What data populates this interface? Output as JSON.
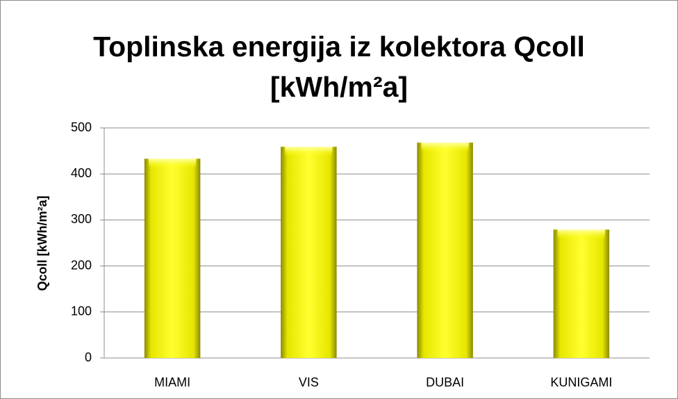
{
  "chart_data": {
    "type": "bar",
    "title": "Toplinska energija iz kolektora Qcoll [kWh/m²a]",
    "y_label": "Qcoll [kWh/m²a]",
    "categories": [
      "MIAMI",
      "VIS",
      "DUBAI",
      "KUNIGAMI"
    ],
    "values": [
      433,
      459,
      468,
      279
    ],
    "color": "#ffff00",
    "ylim": [
      0,
      500
    ],
    "yticks": [
      0,
      100,
      200,
      300,
      400,
      500
    ],
    "grid": true
  }
}
